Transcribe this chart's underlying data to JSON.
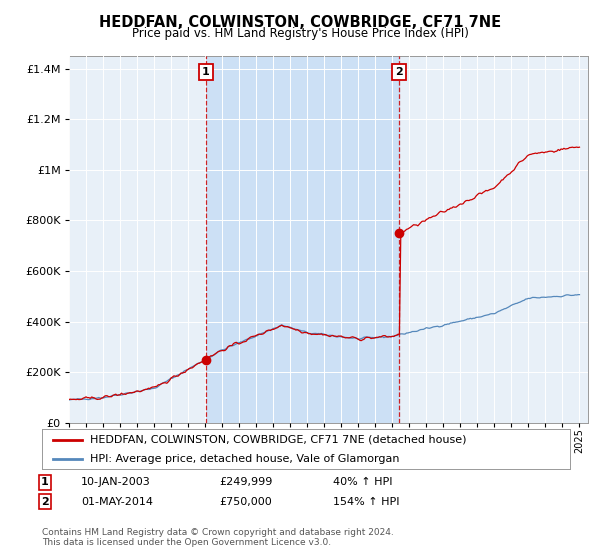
{
  "title": "HEDDFAN, COLWINSTON, COWBRIDGE, CF71 7NE",
  "subtitle": "Price paid vs. HM Land Registry's House Price Index (HPI)",
  "background_color": "#ffffff",
  "plot_bg": "#dce8f5",
  "grid_color": "#bbbbbb",
  "red_color": "#cc0000",
  "blue_color": "#5588bb",
  "sale1_year": 2003.04,
  "sale1_price": 249999,
  "sale2_year": 2014.42,
  "sale2_price": 750000,
  "legend_entry1": "HEDDFAN, COLWINSTON, COWBRIDGE, CF71 7NE (detached house)",
  "legend_entry2": "HPI: Average price, detached house, Vale of Glamorgan",
  "footnote": "Contains HM Land Registry data © Crown copyright and database right 2024.\nThis data is licensed under the Open Government Licence v3.0.",
  "xmin": 1995,
  "xmax": 2025.5,
  "ymin": 0,
  "ymax": 1450000,
  "yticks": [
    0,
    200000,
    400000,
    600000,
    800000,
    1000000,
    1200000,
    1400000
  ]
}
